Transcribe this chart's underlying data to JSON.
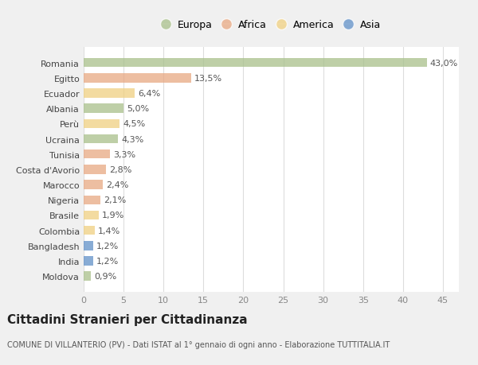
{
  "countries": [
    "Romania",
    "Egitto",
    "Ecuador",
    "Albania",
    "Perù",
    "Ucraina",
    "Tunisia",
    "Costa d'Avorio",
    "Marocco",
    "Nigeria",
    "Brasile",
    "Colombia",
    "Bangladesh",
    "India",
    "Moldova"
  ],
  "values": [
    43.0,
    13.5,
    6.4,
    5.0,
    4.5,
    4.3,
    3.3,
    2.8,
    2.4,
    2.1,
    1.9,
    1.4,
    1.2,
    1.2,
    0.9
  ],
  "labels": [
    "43,0%",
    "13,5%",
    "6,4%",
    "5,0%",
    "4,5%",
    "4,3%",
    "3,3%",
    "2,8%",
    "2,4%",
    "2,1%",
    "1,9%",
    "1,4%",
    "1,2%",
    "1,2%",
    "0,9%"
  ],
  "continents": [
    "Europa",
    "Africa",
    "America",
    "Europa",
    "America",
    "Europa",
    "Africa",
    "Africa",
    "Africa",
    "Africa",
    "America",
    "America",
    "Asia",
    "Asia",
    "Europa"
  ],
  "continent_colors": {
    "Europa": "#a8c08a",
    "Africa": "#e8a882",
    "America": "#f0d080",
    "Asia": "#6090c8"
  },
  "legend_order": [
    "Europa",
    "Africa",
    "America",
    "Asia"
  ],
  "bg_color": "#f0f0f0",
  "plot_bg_color": "#ffffff",
  "grid_color": "#dddddd",
  "title": "Cittadini Stranieri per Cittadinanza",
  "subtitle": "COMUNE DI VILLANTERIO (PV) - Dati ISTAT al 1° gennaio di ogni anno - Elaborazione TUTTITALIA.IT",
  "xlim": [
    0,
    47
  ],
  "xticks": [
    0,
    5,
    10,
    15,
    20,
    25,
    30,
    35,
    40,
    45
  ],
  "bar_height": 0.6,
  "bar_alpha": 0.75,
  "label_fontsize": 8,
  "ytick_fontsize": 8,
  "xtick_fontsize": 8,
  "legend_fontsize": 9,
  "title_fontsize": 11,
  "subtitle_fontsize": 7
}
